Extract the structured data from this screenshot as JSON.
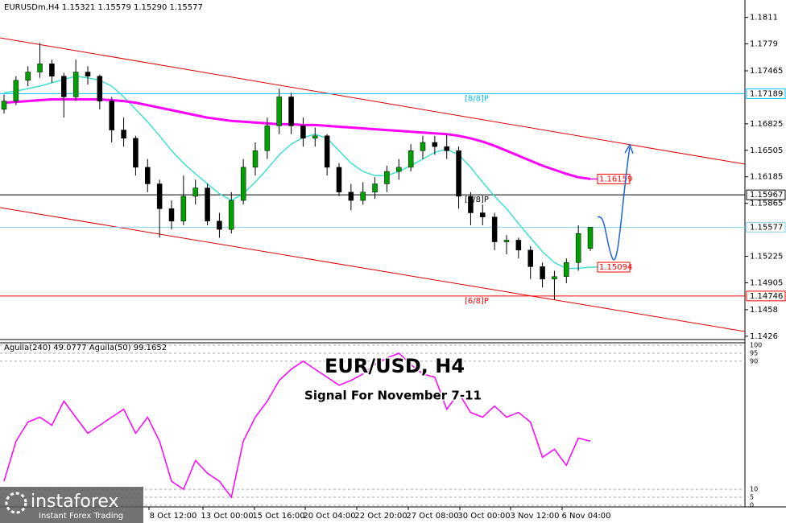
{
  "chart_data": [
    {
      "type": "candlestick",
      "title": "EURUSDm,H4  1.15321 1.15579 1.15290 1.15577",
      "ylim": [
        1.1422,
        1.1832
      ],
      "yticks": [
        1.1811,
        1.1779,
        1.17465,
        1.16825,
        1.16505,
        1.16185,
        1.15865,
        1.15225,
        1.14905,
        1.1458,
        1.1426
      ],
      "up_color": "#00a000",
      "down_color": "#000000",
      "candles": [
        [
          1.17,
          1.1718,
          1.1695,
          1.171
        ],
        [
          1.171,
          1.174,
          1.1705,
          1.1735
        ],
        [
          1.1735,
          1.1752,
          1.1728,
          1.1745
        ],
        [
          1.1745,
          1.178,
          1.1738,
          1.1755
        ],
        [
          1.1755,
          1.176,
          1.1732,
          1.174
        ],
        [
          1.174,
          1.1744,
          1.169,
          1.1715
        ],
        [
          1.1715,
          1.176,
          1.171,
          1.1745
        ],
        [
          1.1745,
          1.1752,
          1.173,
          1.174
        ],
        [
          1.174,
          1.1742,
          1.17,
          1.171
        ],
        [
          1.171,
          1.1715,
          1.166,
          1.1675
        ],
        [
          1.1675,
          1.169,
          1.1655,
          1.1665
        ],
        [
          1.1665,
          1.1668,
          1.162,
          1.163
        ],
        [
          1.163,
          1.164,
          1.16,
          1.161
        ],
        [
          1.161,
          1.1615,
          1.1545,
          1.158
        ],
        [
          1.158,
          1.159,
          1.1555,
          1.1565
        ],
        [
          1.1565,
          1.162,
          1.156,
          1.1595
        ],
        [
          1.1595,
          1.1615,
          1.1585,
          1.1605
        ],
        [
          1.1605,
          1.161,
          1.156,
          1.1565
        ],
        [
          1.1565,
          1.1575,
          1.1545,
          1.1555
        ],
        [
          1.1555,
          1.16,
          1.155,
          1.159
        ],
        [
          1.159,
          1.164,
          1.1585,
          1.163
        ],
        [
          1.163,
          1.166,
          1.162,
          1.165
        ],
        [
          1.165,
          1.169,
          1.164,
          1.168
        ],
        [
          1.168,
          1.1725,
          1.167,
          1.1715
        ],
        [
          1.1715,
          1.172,
          1.167,
          1.168
        ],
        [
          1.168,
          1.169,
          1.1655,
          1.1665
        ],
        [
          1.1665,
          1.1678,
          1.1655,
          1.1668
        ],
        [
          1.1668,
          1.167,
          1.162,
          1.163
        ],
        [
          1.163,
          1.1635,
          1.1595,
          1.16
        ],
        [
          1.16,
          1.161,
          1.1578,
          1.159
        ],
        [
          1.159,
          1.1612,
          1.1585,
          1.16
        ],
        [
          1.16,
          1.1618,
          1.1592,
          1.161
        ],
        [
          1.161,
          1.1632,
          1.16,
          1.1625
        ],
        [
          1.1625,
          1.164,
          1.1615,
          1.163
        ],
        [
          1.163,
          1.1658,
          1.1625,
          1.165
        ],
        [
          1.165,
          1.1668,
          1.164,
          1.166
        ],
        [
          1.166,
          1.1668,
          1.1645,
          1.1655
        ],
        [
          1.1655,
          1.167,
          1.164,
          1.165
        ],
        [
          1.165,
          1.1655,
          1.158,
          1.1595
        ],
        [
          1.1595,
          1.16,
          1.156,
          1.1575
        ],
        [
          1.1575,
          1.1585,
          1.156,
          1.157
        ],
        [
          1.157,
          1.1575,
          1.153,
          1.154
        ],
        [
          1.154,
          1.1548,
          1.1525,
          1.1542
        ],
        [
          1.1542,
          1.1545,
          1.152,
          1.153
        ],
        [
          1.153,
          1.1535,
          1.1495,
          1.151
        ],
        [
          1.151,
          1.1515,
          1.1485,
          1.1495
        ],
        [
          1.1495,
          1.1505,
          1.147,
          1.1498
        ],
        [
          1.1498,
          1.152,
          1.149,
          1.1515
        ],
        [
          1.1515,
          1.156,
          1.1505,
          1.155
        ],
        [
          1.15321,
          1.15579,
          1.1529,
          1.15577
        ]
      ],
      "series": [
        {
          "color": "#40e0d0",
          "values": [
            1.172,
            1.1722,
            1.1725,
            1.1728,
            1.1732,
            1.1736,
            1.174,
            1.1738,
            1.1735,
            1.1728,
            1.1715,
            1.17,
            1.1685,
            1.1668,
            1.165,
            1.1635,
            1.1622,
            1.161,
            1.1598,
            1.159,
            1.1598,
            1.1612,
            1.1628,
            1.1645,
            1.1658,
            1.1666,
            1.167,
            1.1665,
            1.165,
            1.1635,
            1.1625,
            1.162,
            1.162,
            1.1625,
            1.1632,
            1.164,
            1.1648,
            1.1652,
            1.1645,
            1.163,
            1.1612,
            1.1595,
            1.158,
            1.1562,
            1.1545,
            1.1528,
            1.1515,
            1.1508,
            1.1508,
            1.15094
          ],
          "label_color": "#ff0000"
        },
        {
          "color": "#ff00ff",
          "values": [
            1.1708,
            1.1709,
            1.171,
            1.1711,
            1.1712,
            1.1712,
            1.1712,
            1.1712,
            1.1712,
            1.1711,
            1.171,
            1.1708,
            1.1705,
            1.1702,
            1.1699,
            1.1696,
            1.1693,
            1.169,
            1.1688,
            1.1686,
            1.1685,
            1.1684,
            1.1683,
            1.1682,
            1.1682,
            1.1681,
            1.1681,
            1.168,
            1.1679,
            1.1678,
            1.1677,
            1.1676,
            1.1675,
            1.1674,
            1.1673,
            1.1672,
            1.1671,
            1.167,
            1.1668,
            1.1665,
            1.1661,
            1.1656,
            1.165,
            1.1644,
            1.1638,
            1.1632,
            1.1627,
            1.1622,
            1.1618,
            1.16159
          ],
          "label_color": "#ff0000"
        }
      ],
      "levels": [
        {
          "value": 1.17189,
          "color": "#00bfff",
          "label": "[8/8]P"
        },
        {
          "value": 1.15967,
          "color": "#000000",
          "label": "[7/8]P"
        },
        {
          "value": 1.15577,
          "color": "#87ceeb"
        },
        {
          "value": 1.14746,
          "color": "#ff0000",
          "label": "[6/8]P"
        }
      ],
      "x_labels": [
        "8 Oct 12:00",
        "13 Oct 00:00",
        "15 Oct 16:00",
        "20 Oct 04:00",
        "22 Oct 20:00",
        "27 Oct 08:00",
        "30 Oct 00:00",
        "3 Nov 12:00",
        "6 Nov 04:00"
      ]
    },
    {
      "type": "line",
      "title": "Aguila(240) 49.0777  Aguila(50) 99.1652",
      "ylim": [
        0,
        100
      ],
      "yticks": [
        0,
        5,
        10,
        90,
        95,
        100
      ],
      "color": "#ff00ff",
      "values": [
        15,
        40,
        52,
        55,
        50,
        65,
        55,
        45,
        50,
        55,
        60,
        45,
        55,
        40,
        15,
        10,
        28,
        20,
        15,
        5,
        40,
        55,
        65,
        78,
        85,
        90,
        85,
        80,
        75,
        78,
        82,
        88,
        92,
        95,
        88,
        82,
        80,
        60,
        70,
        58,
        55,
        62,
        55,
        58,
        52,
        30,
        35,
        25,
        42,
        40
      ]
    }
  ],
  "overlay": {
    "title": "EUR/USD, H4",
    "subtitle": "Signal For November 7-11"
  },
  "logo": {
    "name": "instaforex",
    "tagline": "Instant Forex Trading"
  }
}
